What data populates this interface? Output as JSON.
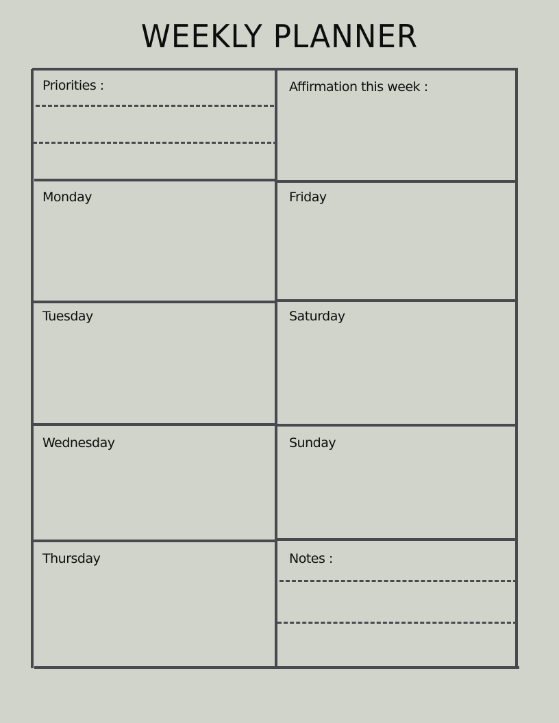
{
  "title": "WEEKLY PLANNER",
  "sections": {
    "priorities": "Priorities :",
    "affirmation": "Affirmation this week :",
    "monday": "Monday",
    "tuesday": "Tuesday",
    "wednesday": "Wednesday",
    "thursday": "Thursday",
    "friday": "Friday",
    "saturday": "Saturday",
    "sunday": "Sunday",
    "notes": "Notes :"
  },
  "colors": {
    "background": "#d1d4cb",
    "lines": "#48484e"
  }
}
